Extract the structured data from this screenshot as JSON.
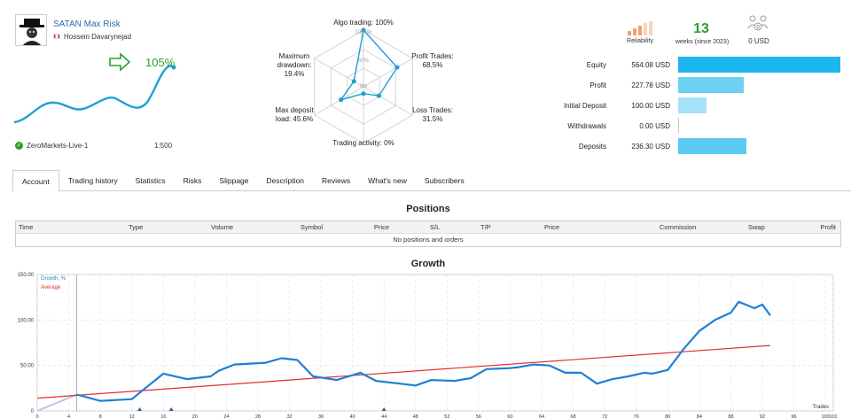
{
  "signal": {
    "name": "SATAN Max Risk",
    "author": "Hossein Davarynejad",
    "growth_pct": "105%",
    "broker": "ZeroMarkets-Live-1",
    "leverage": "1:500"
  },
  "radar": {
    "labels": {
      "algo": "Algo trading: 100%",
      "profit_trades_1": "Profit Trades:",
      "profit_trades_2": "68.5%",
      "loss_trades_1": "Loss Trades:",
      "loss_trades_2": "31.5%",
      "activity": "Trading activity: 0%",
      "deposit_load_1": "Max deposit",
      "deposit_load_2": "load: 45.6%",
      "drawdown_1": "Maximum",
      "drawdown_2": "drawdown:",
      "drawdown_3": "19.4%",
      "ring_100": "100+%",
      "ring_50": "50%",
      "ring_0": "0%"
    },
    "values_pct": [
      100,
      68.5,
      31.5,
      0,
      45.6,
      19.4
    ]
  },
  "stats": {
    "reliability_label": "Reliability",
    "weeks": "13",
    "weeks_label": "weeks (since 2023)",
    "subscribers_value": "0 USD",
    "subscribers_count": "0"
  },
  "finance": [
    {
      "label": "Equity",
      "value": "564.08 USD",
      "amount": 564.08,
      "color": "#1eb6ee"
    },
    {
      "label": "Profit",
      "value": "227.78 USD",
      "amount": 227.78,
      "color": "#6dd1f3"
    },
    {
      "label": "Initial Deposit",
      "value": "100.00 USD",
      "amount": 100.0,
      "color": "#a5e2f7"
    },
    {
      "label": "Withdrawals",
      "value": "0.00 USD",
      "amount": 0,
      "color": "#a5e2f7"
    },
    {
      "label": "Deposits",
      "value": "236.30 USD",
      "amount": 236.3,
      "color": "#5ccbf2"
    }
  ],
  "tabs": [
    "Account",
    "Trading history",
    "Statistics",
    "Risks",
    "Slippage",
    "Description",
    "Reviews",
    "What's new",
    "Subscribers"
  ],
  "positions": {
    "title": "Positions",
    "columns": [
      "Time",
      "Type",
      "Volume",
      "Symbol",
      "Price",
      "S/L",
      "T/P",
      "Price",
      "Commission",
      "Swap",
      "Profit"
    ],
    "empty": "No positions and orders"
  },
  "growth": {
    "title": "Growth",
    "legend_growth": "Growth, %",
    "legend_average": "Average",
    "xlabel": "Trades"
  },
  "chart_data": {
    "type": "line",
    "title": "Growth",
    "xlabel": "Trades",
    "ylabel": "",
    "ylim": [
      0,
      150
    ],
    "xlim": [
      0,
      101
    ],
    "yticks": [
      "0",
      "50.00",
      "100.00",
      "150.00"
    ],
    "xticks": [
      0,
      4,
      8,
      12,
      16,
      20,
      24,
      28,
      32,
      36,
      40,
      44,
      48,
      52,
      56,
      60,
      64,
      68,
      72,
      76,
      80,
      84,
      88,
      92,
      96,
      100,
      101
    ],
    "series": [
      {
        "name": "Growth, %",
        "color": "#1f7fd6",
        "x": [
          0,
          5,
          8,
          12,
          16,
          19,
          22,
          23,
          25,
          27,
          29,
          31,
          33,
          35,
          38,
          41,
          43,
          46,
          48,
          50,
          53,
          55,
          57,
          60,
          61,
          63,
          65,
          67,
          69,
          71,
          73,
          75,
          77,
          78,
          80,
          82,
          84,
          86,
          88,
          89,
          91,
          92,
          93
        ],
        "y": [
          0,
          18,
          11,
          13,
          41,
          35,
          38,
          44,
          51,
          52,
          53,
          58,
          56,
          38,
          34,
          42,
          33,
          30,
          28,
          34,
          33,
          36,
          46,
          47,
          48,
          51,
          50,
          42,
          42,
          30,
          35,
          38,
          42,
          41,
          45,
          68,
          88,
          100,
          108,
          120,
          113,
          117,
          105
        ]
      },
      {
        "name": "Average",
        "color": "#e03030",
        "x": [
          0,
          93
        ],
        "y": [
          14,
          72
        ]
      }
    ]
  }
}
